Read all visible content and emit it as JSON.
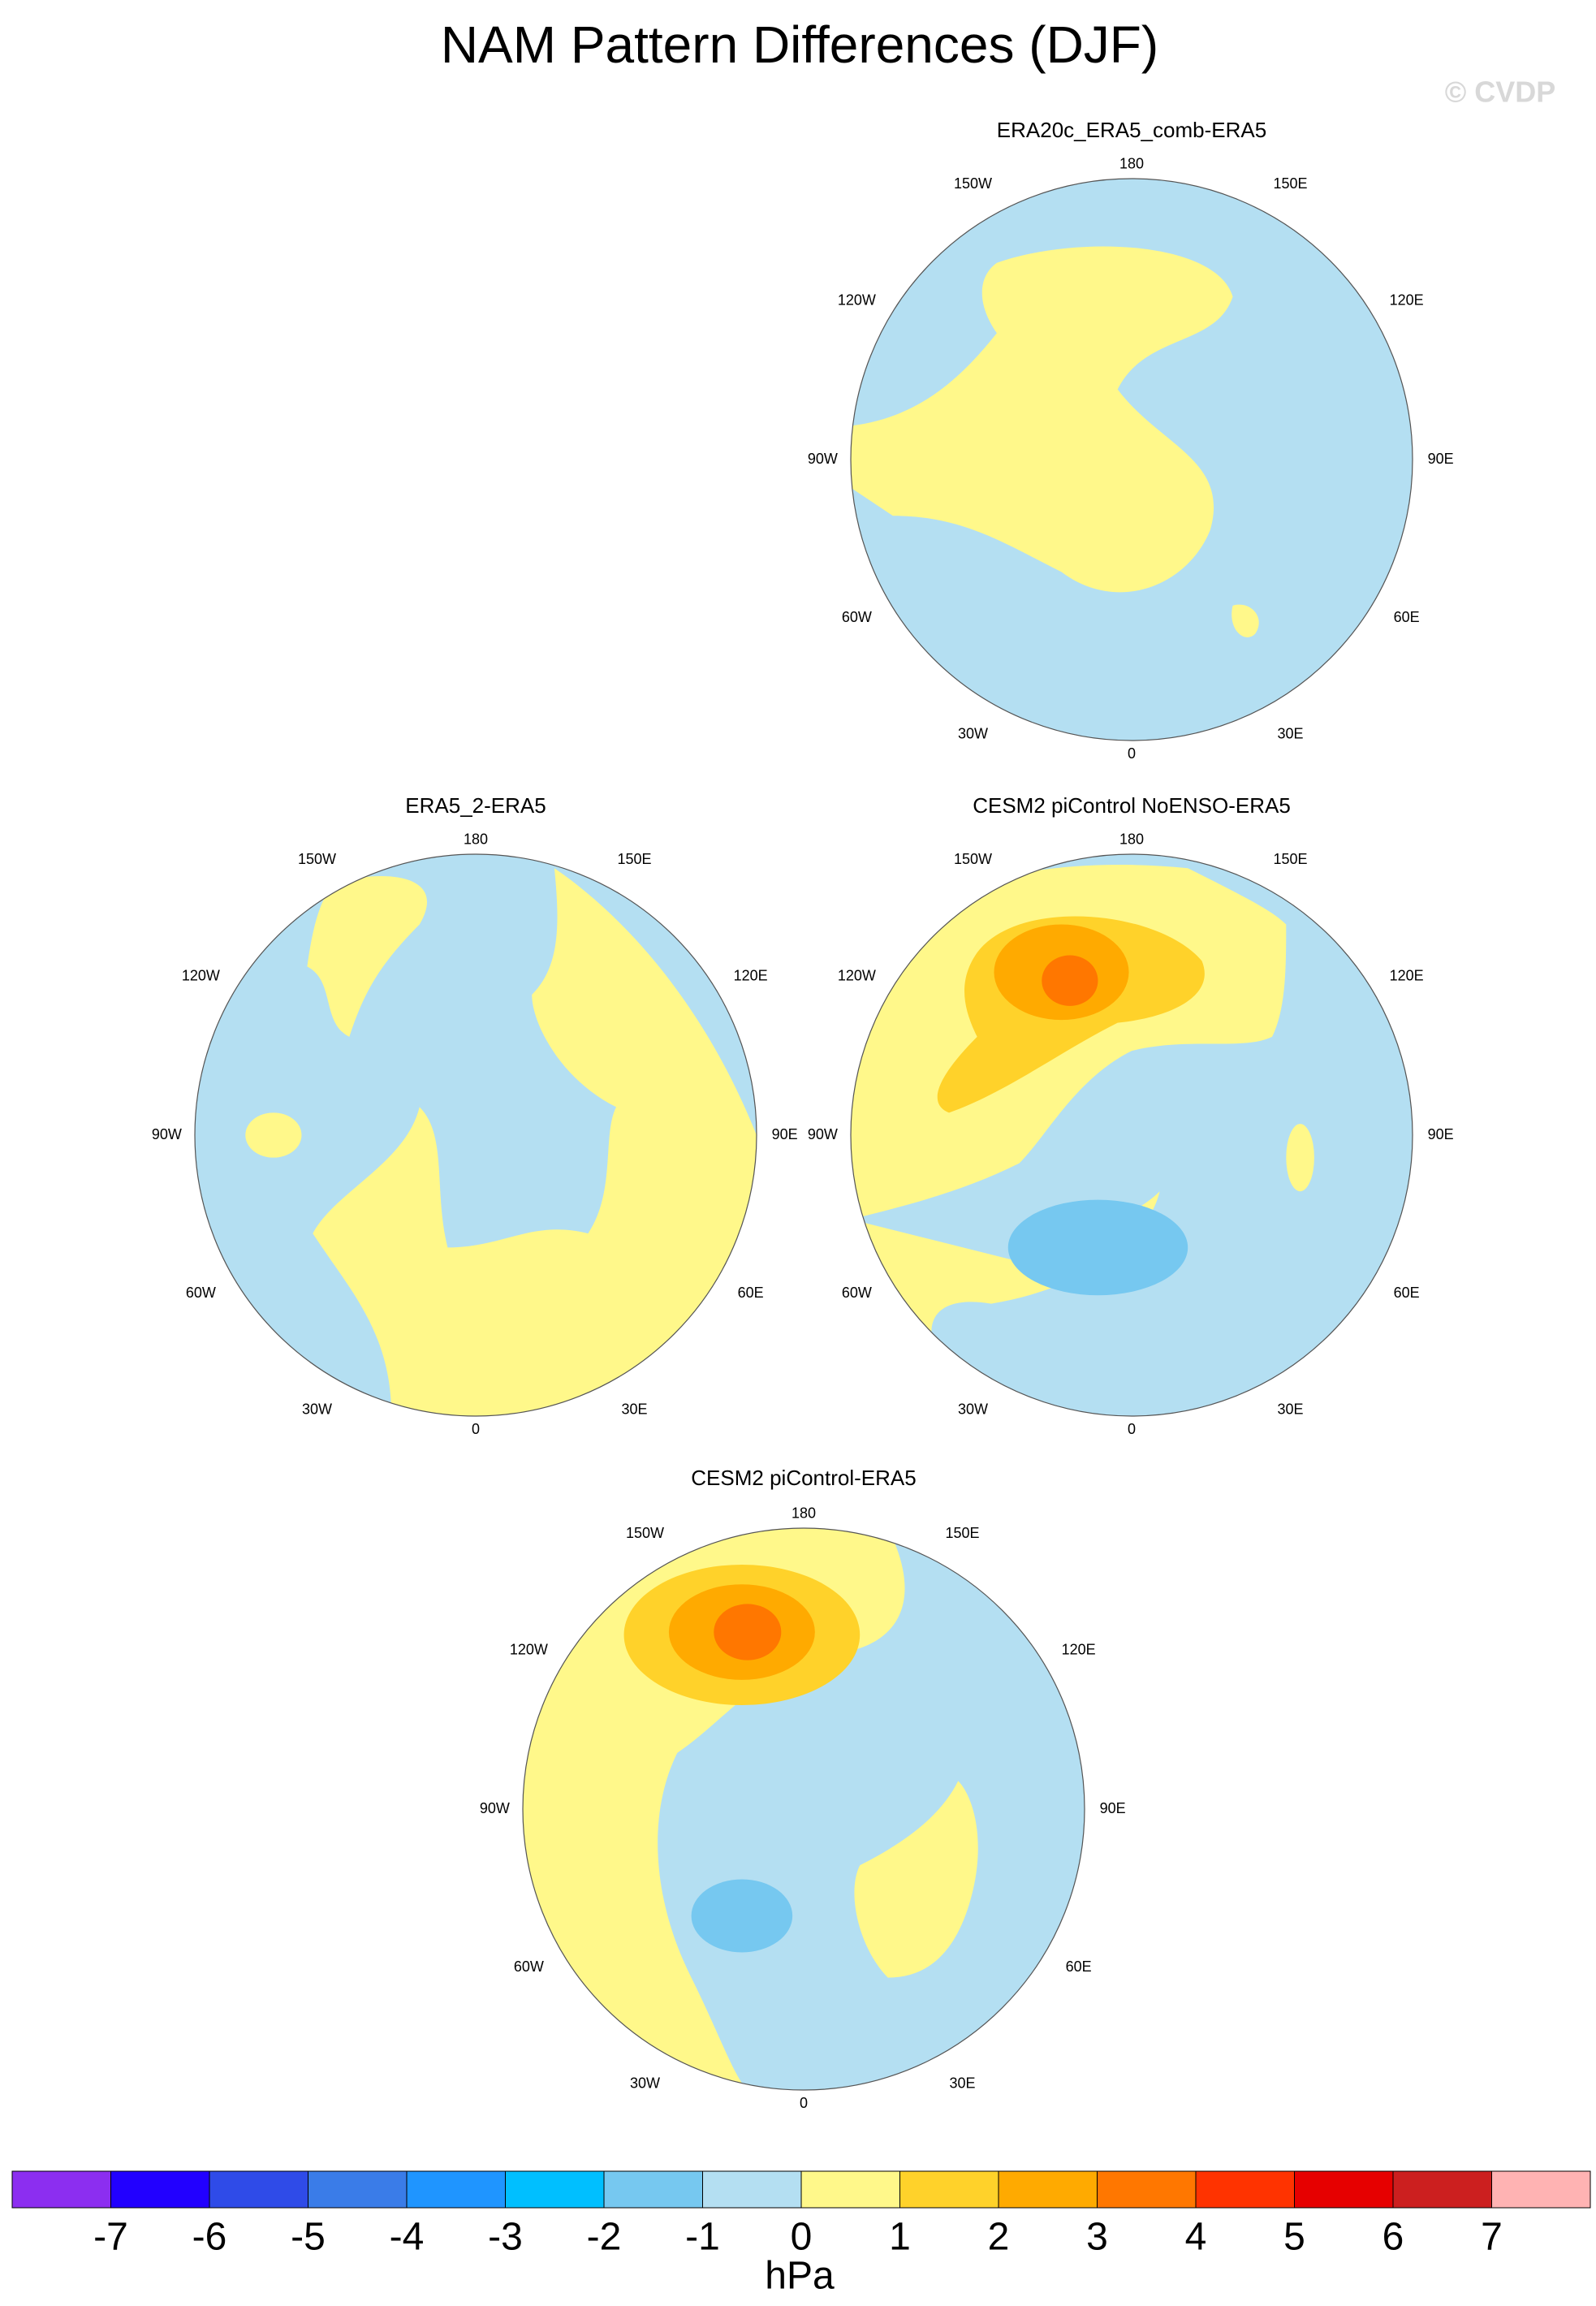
{
  "title": "NAM Pattern Differences (DJF)",
  "watermark": "© CVDP",
  "panels": [
    {
      "title": "ERA20c_ERA5_comb-ERA5"
    },
    {
      "title": "ERA5_2-ERA5"
    },
    {
      "title": "CESM2 piControl NoENSO-ERA5"
    },
    {
      "title": "CESM2 piControl-ERA5"
    }
  ],
  "lon_labels": [
    "180",
    "150E",
    "120E",
    "90E",
    "60E",
    "30E",
    "0",
    "30W",
    "60W",
    "90W",
    "120W",
    "150W"
  ],
  "colorbar": {
    "ticks": [
      -7,
      -6,
      -5,
      -4,
      -3,
      -2,
      -1,
      0,
      1,
      2,
      3,
      4,
      5,
      6,
      7
    ],
    "colors": [
      "#8c2ef0",
      "#2200ff",
      "#2f4be8",
      "#3a7ce8",
      "#1f95ff",
      "#00bfff",
      "#76c8f0",
      "#b4dff2",
      "#fff88a",
      "#ffd22a",
      "#ffaa00",
      "#ff7700",
      "#ff3300",
      "#e60000",
      "#cc1f1f",
      "#ffb3b3"
    ],
    "unit": "hPa"
  }
}
